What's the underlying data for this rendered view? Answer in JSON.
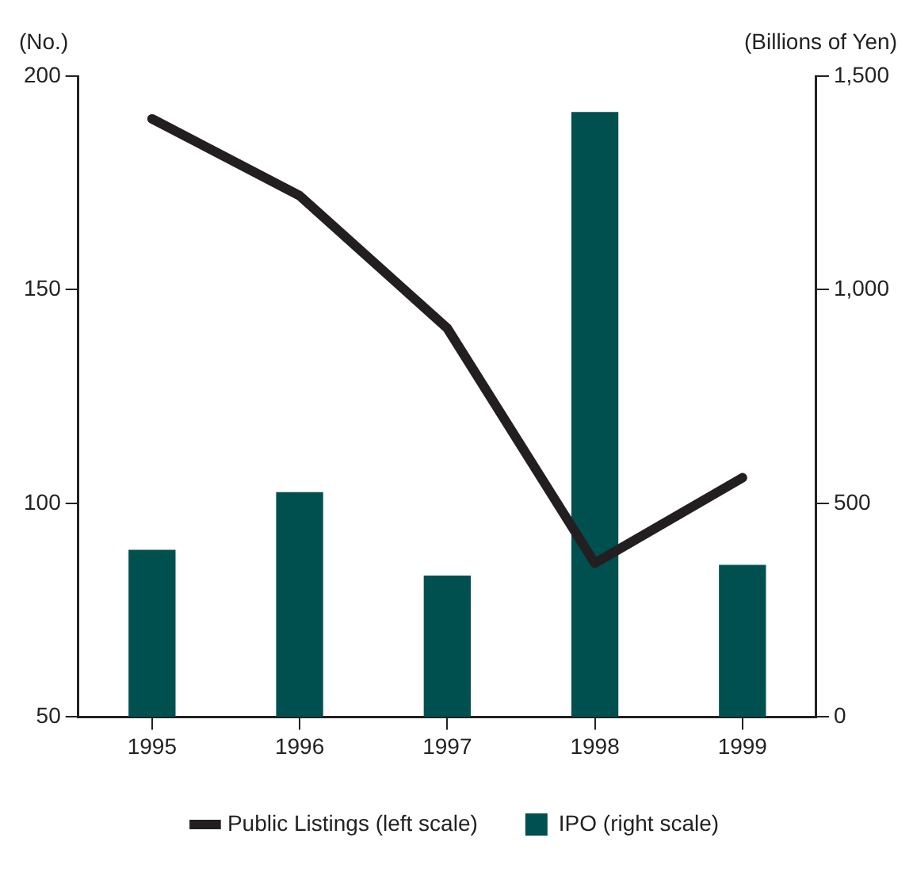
{
  "chart_data": {
    "type": "bar",
    "ylabel": "(No.)",
    "y2label": "(Billions of Yen)",
    "categories": [
      "1995",
      "1996",
      "1997",
      "1998",
      "1999"
    ],
    "series": [
      {
        "name": "Public Listings (left scale)",
        "type": "line",
        "color": "#231f20",
        "values": [
          190,
          172,
          141,
          86,
          106
        ],
        "marker": "none",
        "line_style": "solid"
      },
      {
        "name": "IPO (right scale)",
        "axis": "y2",
        "color": "#00504f",
        "values": [
          390,
          525,
          330,
          1415,
          355
        ]
      }
    ],
    "ylim": [
      50,
      200
    ],
    "yticks": [
      50,
      100,
      150,
      200
    ],
    "y2lim": [
      0,
      1500
    ],
    "y2ticks": [
      0,
      {
        "value": 500,
        "label": "500"
      },
      {
        "value": 1000,
        "label": "1,000"
      },
      {
        "value": 1500,
        "label": "1,500"
      }
    ],
    "grid": false,
    "legend": "bottom"
  }
}
